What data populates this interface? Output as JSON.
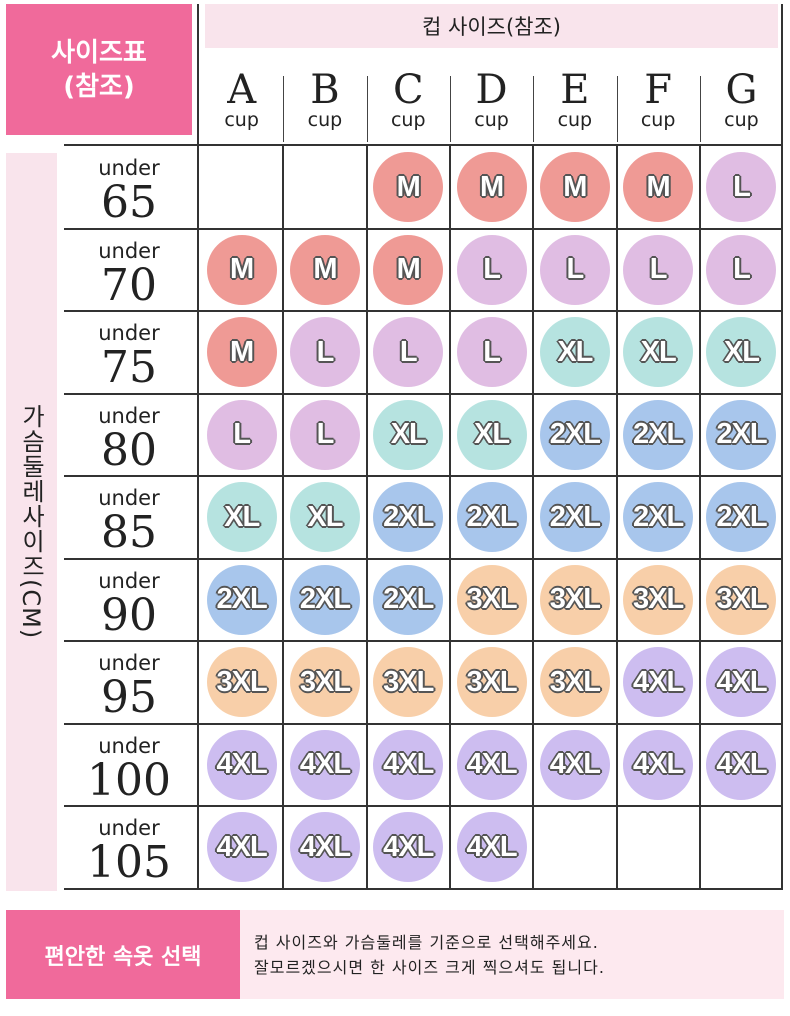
{
  "title": {
    "line1": "사이즈표",
    "line2": "(참조)"
  },
  "cup_header": "컵 사이즈(참조)",
  "cup_unit": "cup",
  "cups": [
    "A",
    "B",
    "C",
    "D",
    "E",
    "F",
    "G"
  ],
  "band_label": "가슴둘레사이즈(CM)",
  "band_prefix": "under",
  "bands": [
    "65",
    "70",
    "75",
    "80",
    "85",
    "90",
    "95",
    "100",
    "105"
  ],
  "size_colors": {
    "M": "#ef9a95",
    "L": "#e0bde3",
    "XL": "#b6e3e0",
    "2XL": "#a8c6ec",
    "3XL": "#f8cfa9",
    "4XL": "#cdbdf0"
  },
  "grid": [
    [
      "",
      "",
      "M",
      "M",
      "M",
      "M",
      "L"
    ],
    [
      "M",
      "M",
      "M",
      "L",
      "L",
      "L",
      "L"
    ],
    [
      "M",
      "L",
      "L",
      "L",
      "XL",
      "XL",
      "XL"
    ],
    [
      "L",
      "L",
      "XL",
      "XL",
      "2XL",
      "2XL",
      "2XL"
    ],
    [
      "XL",
      "XL",
      "2XL",
      "2XL",
      "2XL",
      "2XL",
      "2XL"
    ],
    [
      "2XL",
      "2XL",
      "2XL",
      "3XL",
      "3XL",
      "3XL",
      "3XL"
    ],
    [
      "3XL",
      "3XL",
      "3XL",
      "3XL",
      "3XL",
      "4XL",
      "4XL"
    ],
    [
      "4XL",
      "4XL",
      "4XL",
      "4XL",
      "4XL",
      "4XL",
      "4XL"
    ],
    [
      "4XL",
      "4XL",
      "4XL",
      "4XL",
      "",
      "",
      ""
    ]
  ],
  "footer": {
    "heading": "편안한 속옷 선택",
    "line1": "컵 사이즈와 가슴둘레를 기준으로 선택해주세요.",
    "line2": "잘모르겠으시면 한 사이즈 크게 찍으셔도 됩니다."
  }
}
